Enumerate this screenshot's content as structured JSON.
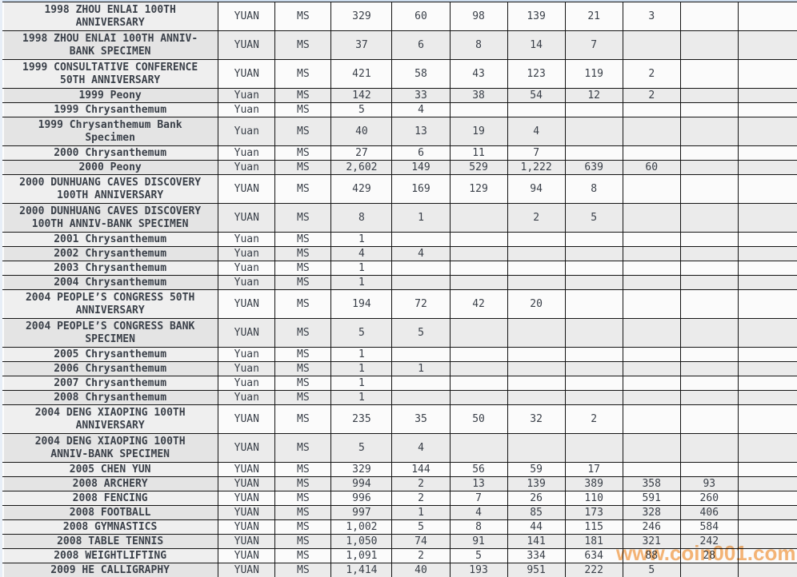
{
  "watermark": {
    "text": "www.coin001.com",
    "color": "#f5a455"
  },
  "table": {
    "grade_label": "MS",
    "rows": [
      {
        "desc_lines": [
          "1998 ZHOU ENLAI 100TH",
          "ANNIVERSARY"
        ],
        "unit": "YUAN",
        "grade": "MS",
        "values": [
          "329",
          "60",
          "98",
          "139",
          "21",
          "3",
          "",
          ""
        ]
      },
      {
        "desc_lines": [
          "1998 ZHOU ENLAI 100TH ANNIV-",
          "BANK SPECIMEN"
        ],
        "unit": "YUAN",
        "grade": "MS",
        "values": [
          "37",
          "6",
          "8",
          "14",
          "7",
          "",
          "",
          ""
        ]
      },
      {
        "desc_lines": [
          "1999 CONSULTATIVE CONFERENCE",
          "50TH ANNIVERSARY"
        ],
        "unit": "YUAN",
        "grade": "MS",
        "values": [
          "421",
          "58",
          "43",
          "123",
          "119",
          "2",
          "",
          ""
        ]
      },
      {
        "desc_lines": [
          "1999 Peony"
        ],
        "unit": "Yuan",
        "grade": "MS",
        "values": [
          "142",
          "33",
          "38",
          "54",
          "12",
          "2",
          "",
          ""
        ]
      },
      {
        "desc_lines": [
          "1999 Chrysanthemum"
        ],
        "unit": "Yuan",
        "grade": "MS",
        "values": [
          "5",
          "4",
          "",
          "",
          "",
          "",
          "",
          ""
        ]
      },
      {
        "desc_lines": [
          "1999 Chrysanthemum Bank",
          "Specimen"
        ],
        "unit": "Yuan",
        "grade": "MS",
        "values": [
          "40",
          "13",
          "19",
          "4",
          "",
          "",
          "",
          ""
        ]
      },
      {
        "desc_lines": [
          "2000 Chrysanthemum"
        ],
        "unit": "Yuan",
        "grade": "MS",
        "values": [
          "27",
          "6",
          "11",
          "7",
          "",
          "",
          "",
          ""
        ]
      },
      {
        "desc_lines": [
          "2000 Peony"
        ],
        "unit": "Yuan",
        "grade": "MS",
        "values": [
          "2,602",
          "149",
          "529",
          "1,222",
          "639",
          "60",
          "",
          ""
        ]
      },
      {
        "desc_lines": [
          "2000 DUNHUANG CAVES DISCOVERY",
          "100TH ANNIVERSARY"
        ],
        "unit": "YUAN",
        "grade": "MS",
        "values": [
          "429",
          "169",
          "129",
          "94",
          "8",
          "",
          "",
          ""
        ]
      },
      {
        "desc_lines": [
          "2000 DUNHUANG CAVES DISCOVERY",
          "100TH ANNIV-BANK SPECIMEN"
        ],
        "unit": "YUAN",
        "grade": "MS",
        "values": [
          "8",
          "1",
          "",
          "2",
          "5",
          "",
          "",
          ""
        ]
      },
      {
        "desc_lines": [
          "2001 Chrysanthemum"
        ],
        "unit": "Yuan",
        "grade": "MS",
        "values": [
          "1",
          "",
          "",
          "",
          "",
          "",
          "",
          ""
        ]
      },
      {
        "desc_lines": [
          "2002 Chrysanthemum"
        ],
        "unit": "Yuan",
        "grade": "MS",
        "values": [
          "4",
          "4",
          "",
          "",
          "",
          "",
          "",
          ""
        ]
      },
      {
        "desc_lines": [
          "2003 Chrysanthemum"
        ],
        "unit": "Yuan",
        "grade": "MS",
        "values": [
          "1",
          "",
          "",
          "",
          "",
          "",
          "",
          ""
        ]
      },
      {
        "desc_lines": [
          "2004 Chrysanthemum"
        ],
        "unit": "Yuan",
        "grade": "MS",
        "values": [
          "1",
          "",
          "",
          "",
          "",
          "",
          "",
          ""
        ]
      },
      {
        "desc_lines": [
          "2004 PEOPLE’S CONGRESS 50TH",
          "ANNIVERSARY"
        ],
        "unit": "YUAN",
        "grade": "MS",
        "values": [
          "194",
          "72",
          "42",
          "20",
          "",
          "",
          "",
          ""
        ]
      },
      {
        "desc_lines": [
          "2004 PEOPLE’S CONGRESS BANK",
          "SPECIMEN"
        ],
        "unit": "YUAN",
        "grade": "MS",
        "values": [
          "5",
          "5",
          "",
          "",
          "",
          "",
          "",
          ""
        ]
      },
      {
        "desc_lines": [
          "2005 Chrysanthemum"
        ],
        "unit": "Yuan",
        "grade": "MS",
        "values": [
          "1",
          "",
          "",
          "",
          "",
          "",
          "",
          ""
        ]
      },
      {
        "desc_lines": [
          "2006 Chrysanthemum"
        ],
        "unit": "Yuan",
        "grade": "MS",
        "values": [
          "1",
          "1",
          "",
          "",
          "",
          "",
          "",
          ""
        ]
      },
      {
        "desc_lines": [
          "2007 Chrysanthemum"
        ],
        "unit": "Yuan",
        "grade": "MS",
        "values": [
          "1",
          "",
          "",
          "",
          "",
          "",
          "",
          ""
        ]
      },
      {
        "desc_lines": [
          "2008 Chrysanthemum"
        ],
        "unit": "Yuan",
        "grade": "MS",
        "values": [
          "1",
          "",
          "",
          "",
          "",
          "",
          "",
          ""
        ]
      },
      {
        "desc_lines": [
          "2004 DENG XIAOPING 100TH",
          "ANNIVERSARY"
        ],
        "unit": "YUAN",
        "grade": "MS",
        "values": [
          "235",
          "35",
          "50",
          "32",
          "2",
          "",
          "",
          ""
        ]
      },
      {
        "desc_lines": [
          "2004 DENG XIAOPING 100TH",
          "ANNIV-BANK SPECIMEN"
        ],
        "unit": "YUAN",
        "grade": "MS",
        "values": [
          "5",
          "4",
          "",
          "",
          "",
          "",
          "",
          ""
        ]
      },
      {
        "desc_lines": [
          "2005 CHEN YUN"
        ],
        "unit": "YUAN",
        "grade": "MS",
        "values": [
          "329",
          "144",
          "56",
          "59",
          "17",
          "",
          "",
          ""
        ]
      },
      {
        "desc_lines": [
          "2008 ARCHERY"
        ],
        "unit": "YUAN",
        "grade": "MS",
        "values": [
          "994",
          "2",
          "13",
          "139",
          "389",
          "358",
          "93",
          ""
        ]
      },
      {
        "desc_lines": [
          "2008 FENCING"
        ],
        "unit": "YUAN",
        "grade": "MS",
        "values": [
          "996",
          "2",
          "7",
          "26",
          "110",
          "591",
          "260",
          ""
        ]
      },
      {
        "desc_lines": [
          "2008 FOOTBALL"
        ],
        "unit": "YUAN",
        "grade": "MS",
        "values": [
          "997",
          "1",
          "4",
          "85",
          "173",
          "328",
          "406",
          ""
        ]
      },
      {
        "desc_lines": [
          "2008 GYMNASTICS"
        ],
        "unit": "YUAN",
        "grade": "MS",
        "values": [
          "1,002",
          "5",
          "8",
          "44",
          "115",
          "246",
          "584",
          ""
        ]
      },
      {
        "desc_lines": [
          "2008 TABLE TENNIS"
        ],
        "unit": "YUAN",
        "grade": "MS",
        "values": [
          "1,050",
          "74",
          "91",
          "141",
          "181",
          "321",
          "242",
          ""
        ]
      },
      {
        "desc_lines": [
          "2008 WEIGHTLIFTING"
        ],
        "unit": "YUAN",
        "grade": "MS",
        "values": [
          "1,091",
          "2",
          "5",
          "334",
          "634",
          "88",
          "28",
          ""
        ]
      },
      {
        "desc_lines": [
          "2009 HE CALLIGRAPHY"
        ],
        "unit": "YUAN",
        "grade": "MS",
        "values": [
          "1,414",
          "40",
          "193",
          "951",
          "222",
          "5",
          "",
          ""
        ]
      }
    ]
  }
}
